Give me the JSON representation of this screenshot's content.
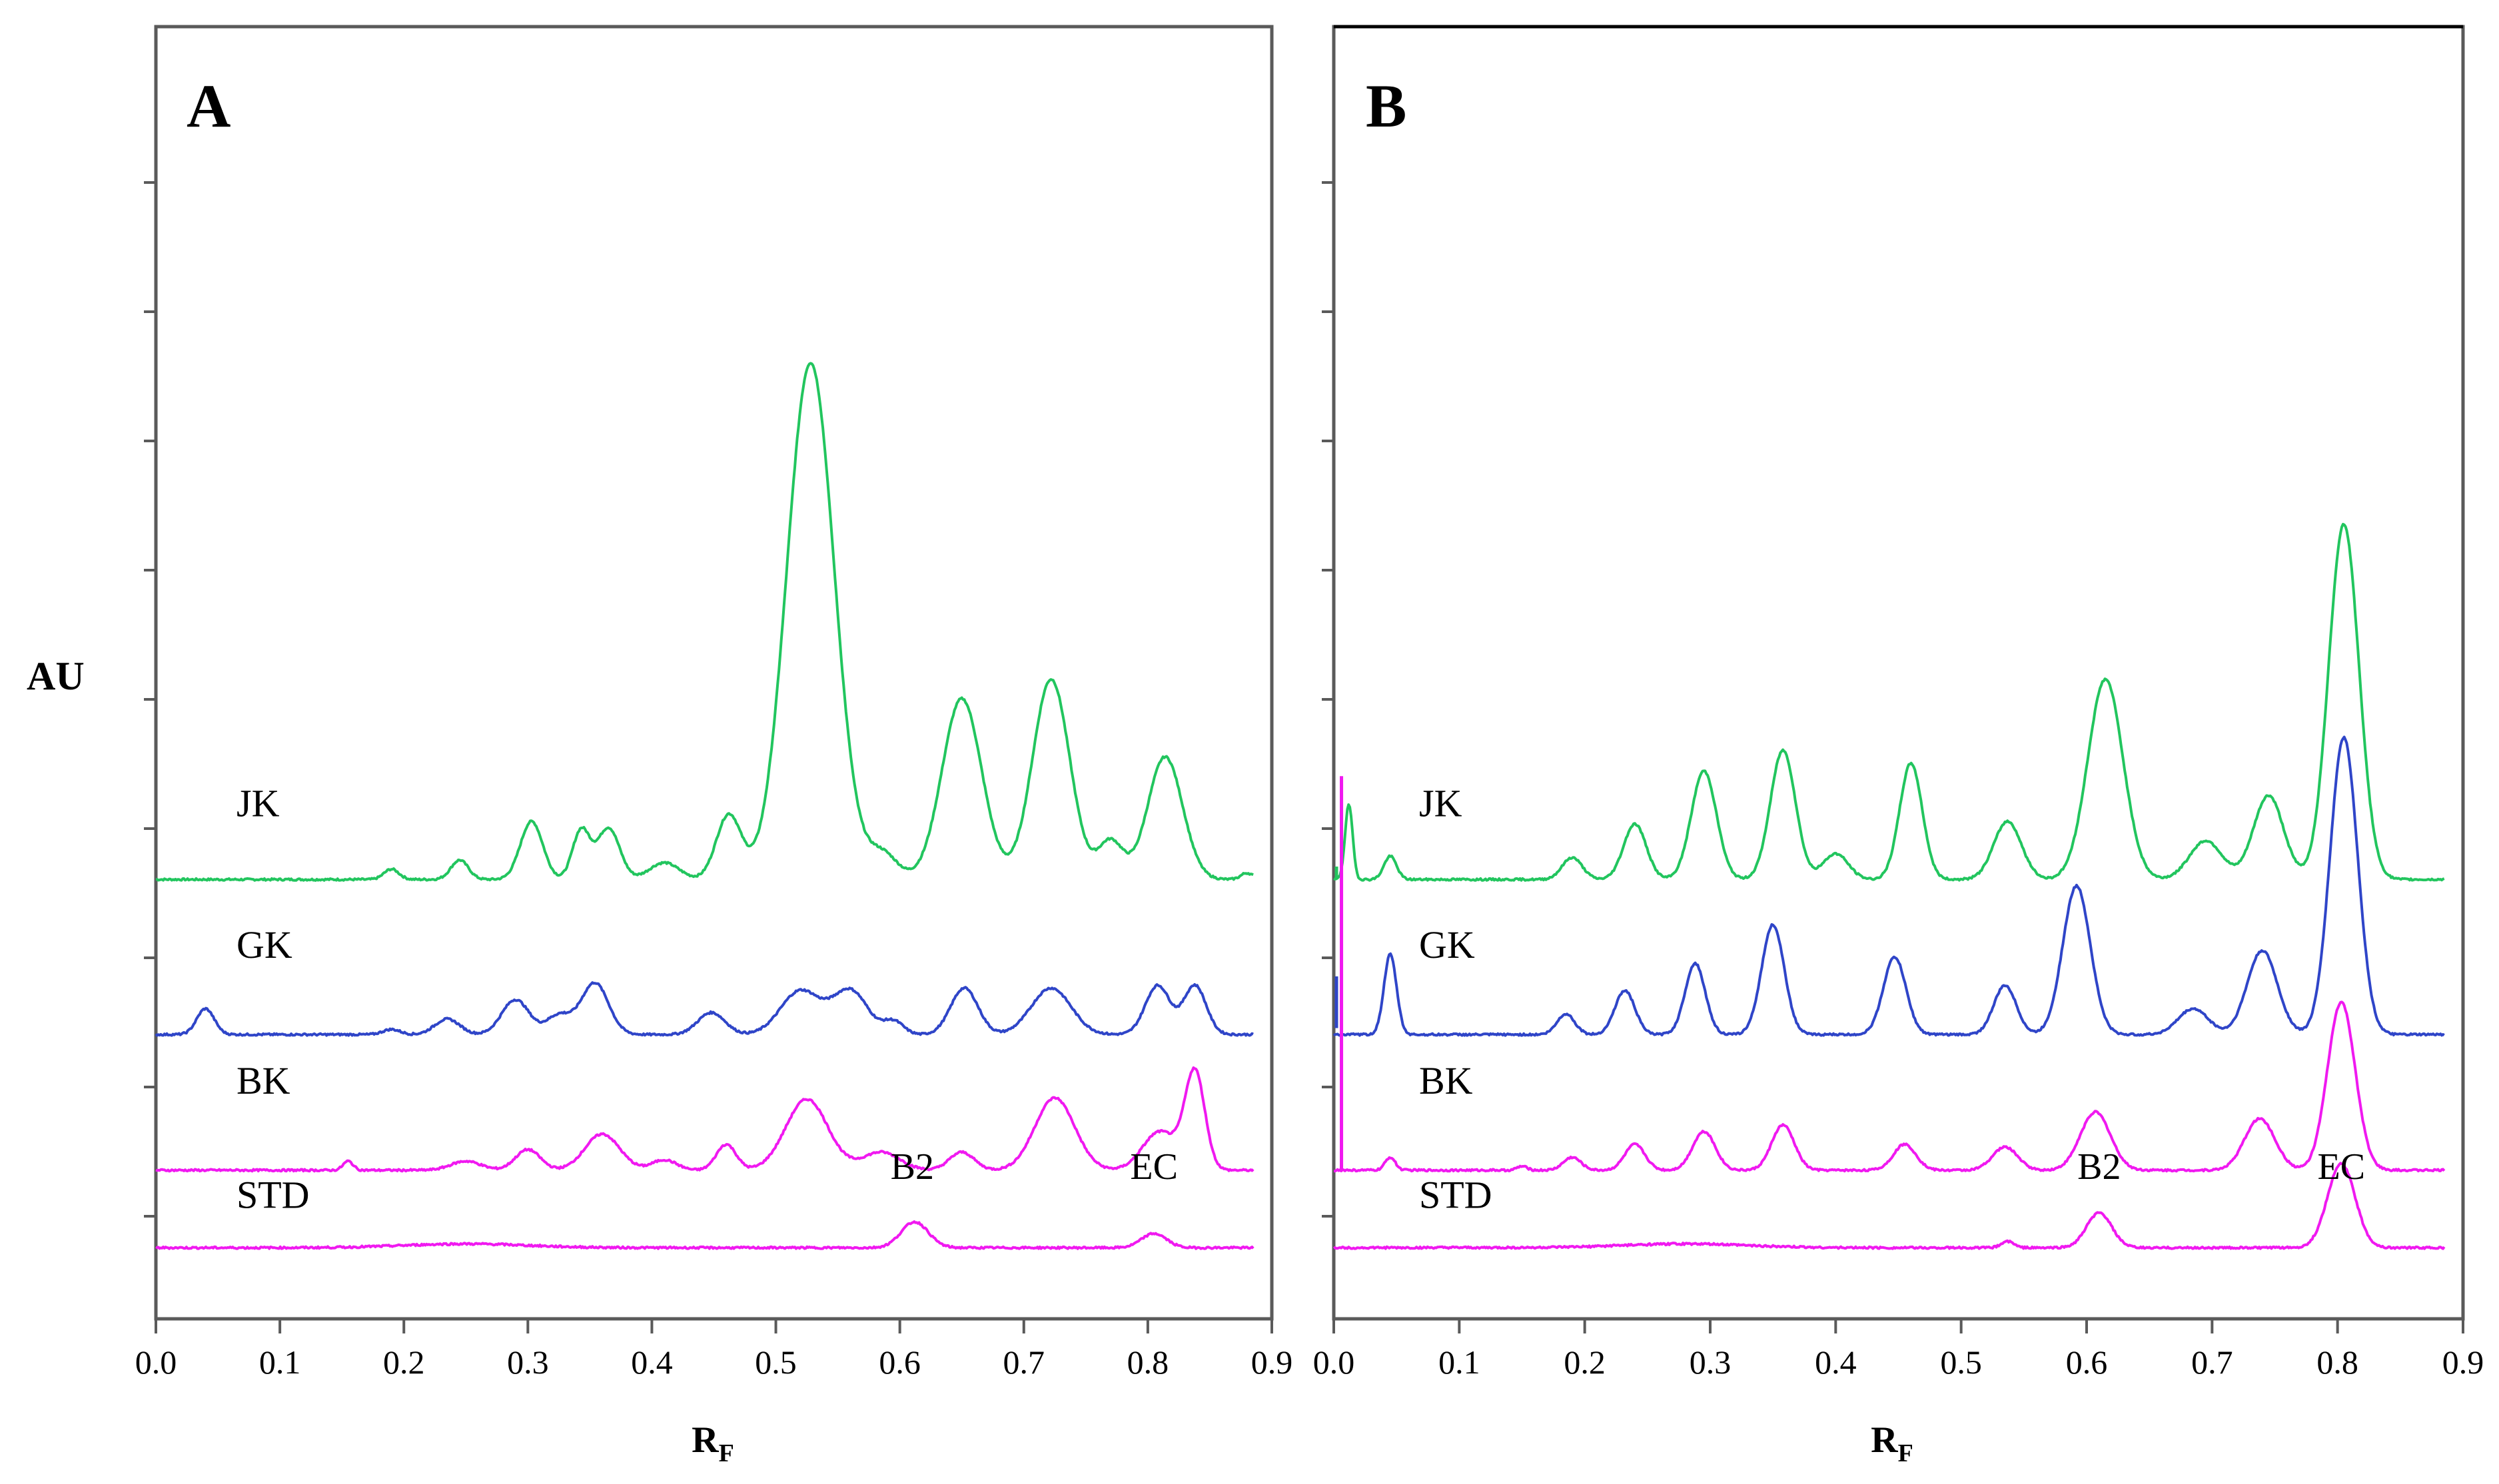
{
  "figure": {
    "y_axis_label": "AU",
    "x_axis_label_main": "R",
    "x_axis_label_sub": "F",
    "x_ticks": [
      "0.0",
      "0.1",
      "0.2",
      "0.3",
      "0.4",
      "0.5",
      "0.6",
      "0.7",
      "0.8",
      "0.9"
    ]
  },
  "colors": {
    "JK": "#22c55e",
    "GK": "#2f45c8",
    "BK": "#f019f0",
    "STD": "#f019f0",
    "axis": "#555555"
  },
  "chart_data": [
    {
      "type": "line",
      "panel": "A",
      "title": "A",
      "xlabel": "RF",
      "ylabel": "AU",
      "xlim": [
        0.0,
        0.9
      ],
      "ylim": [
        0,
        1
      ],
      "grid": false,
      "series": [
        {
          "name": "JK",
          "baseline": 0.34,
          "end": 0.885,
          "peaks": [
            {
              "x": 0.19,
              "h": 0.008,
              "w": 0.006
            },
            {
              "x": 0.245,
              "h": 0.015,
              "w": 0.007
            },
            {
              "x": 0.303,
              "h": 0.045,
              "w": 0.009
            },
            {
              "x": 0.343,
              "h": 0.038,
              "w": 0.007
            },
            {
              "x": 0.365,
              "h": 0.04,
              "w": 0.009
            },
            {
              "x": 0.41,
              "h": 0.013,
              "w": 0.012
            },
            {
              "x": 0.462,
              "h": 0.05,
              "w": 0.01
            },
            {
              "x": 0.528,
              "h": 0.4,
              "w": 0.019
            },
            {
              "x": 0.586,
              "h": 0.02,
              "w": 0.012
            },
            {
              "x": 0.65,
              "h": 0.14,
              "w": 0.016
            },
            {
              "x": 0.722,
              "h": 0.155,
              "w": 0.015
            },
            {
              "x": 0.77,
              "h": 0.03,
              "w": 0.01
            },
            {
              "x": 0.814,
              "h": 0.095,
              "w": 0.014
            },
            {
              "x": 0.88,
              "h": 0.005,
              "w": 0.005
            }
          ]
        },
        {
          "name": "GK",
          "baseline": 0.22,
          "end": 0.885,
          "peaks": [
            {
              "x": 0.04,
              "h": 0.02,
              "w": 0.007
            },
            {
              "x": 0.19,
              "h": 0.004,
              "w": 0.007
            },
            {
              "x": 0.235,
              "h": 0.012,
              "w": 0.01
            },
            {
              "x": 0.29,
              "h": 0.027,
              "w": 0.011
            },
            {
              "x": 0.325,
              "h": 0.015,
              "w": 0.01
            },
            {
              "x": 0.354,
              "h": 0.04,
              "w": 0.011
            },
            {
              "x": 0.448,
              "h": 0.017,
              "w": 0.011
            },
            {
              "x": 0.52,
              "h": 0.034,
              "w": 0.016
            },
            {
              "x": 0.56,
              "h": 0.034,
              "w": 0.014
            },
            {
              "x": 0.595,
              "h": 0.01,
              "w": 0.008
            },
            {
              "x": 0.652,
              "h": 0.036,
              "w": 0.011
            },
            {
              "x": 0.722,
              "h": 0.036,
              "w": 0.016
            },
            {
              "x": 0.808,
              "h": 0.038,
              "w": 0.01
            },
            {
              "x": 0.838,
              "h": 0.038,
              "w": 0.009
            }
          ]
        },
        {
          "name": "BK",
          "baseline": 0.115,
          "end": 0.885,
          "peaks": [
            {
              "x": 0.155,
              "h": 0.007,
              "w": 0.004
            },
            {
              "x": 0.25,
              "h": 0.007,
              "w": 0.012
            },
            {
              "x": 0.3,
              "h": 0.016,
              "w": 0.01
            },
            {
              "x": 0.36,
              "h": 0.028,
              "w": 0.014
            },
            {
              "x": 0.41,
              "h": 0.008,
              "w": 0.01
            },
            {
              "x": 0.46,
              "h": 0.02,
              "w": 0.008
            },
            {
              "x": 0.525,
              "h": 0.055,
              "w": 0.017
            },
            {
              "x": 0.585,
              "h": 0.014,
              "w": 0.015
            },
            {
              "x": 0.65,
              "h": 0.014,
              "w": 0.01
            },
            {
              "x": 0.725,
              "h": 0.056,
              "w": 0.016
            },
            {
              "x": 0.81,
              "h": 0.03,
              "w": 0.014
            },
            {
              "x": 0.838,
              "h": 0.075,
              "w": 0.008
            }
          ]
        },
        {
          "name": "STD",
          "baseline": 0.055,
          "end": 0.885,
          "peaks": [
            {
              "x": 0.25,
              "h": 0.003,
              "w": 0.05
            },
            {
              "x": 0.612,
              "h": 0.02,
              "w": 0.011
            },
            {
              "x": 0.805,
              "h": 0.011,
              "w": 0.01
            }
          ]
        }
      ],
      "annotations": [
        {
          "text": "B2",
          "x": 0.61
        },
        {
          "text": "EC",
          "x": 0.805
        }
      ]
    },
    {
      "type": "line",
      "panel": "B",
      "title": "B",
      "xlabel": "RF",
      "ylabel": "AU",
      "xlim": [
        0.0,
        0.9
      ],
      "ylim": [
        0,
        1
      ],
      "grid": false,
      "series": [
        {
          "name": "JK",
          "baseline": 0.34,
          "end": 0.885,
          "peaks": [
            {
              "x": 0.012,
              "h": 0.058,
              "w": 0.003
            },
            {
              "x": 0.045,
              "h": 0.018,
              "w": 0.005
            },
            {
              "x": 0.19,
              "h": 0.017,
              "w": 0.008
            },
            {
              "x": 0.24,
              "h": 0.043,
              "w": 0.009
            },
            {
              "x": 0.295,
              "h": 0.084,
              "w": 0.01
            },
            {
              "x": 0.358,
              "h": 0.1,
              "w": 0.01
            },
            {
              "x": 0.4,
              "h": 0.02,
              "w": 0.01
            },
            {
              "x": 0.46,
              "h": 0.09,
              "w": 0.009
            },
            {
              "x": 0.537,
              "h": 0.045,
              "w": 0.011
            },
            {
              "x": 0.615,
              "h": 0.155,
              "w": 0.014
            },
            {
              "x": 0.695,
              "h": 0.03,
              "w": 0.013
            },
            {
              "x": 0.745,
              "h": 0.065,
              "w": 0.012
            },
            {
              "x": 0.805,
              "h": 0.275,
              "w": 0.012
            }
          ]
        },
        {
          "name": "GK",
          "baseline": 0.22,
          "end": 0.885,
          "peaks": [
            {
              "x": 0.045,
              "h": 0.062,
              "w": 0.005
            },
            {
              "x": 0.185,
              "h": 0.016,
              "w": 0.007
            },
            {
              "x": 0.232,
              "h": 0.034,
              "w": 0.008
            },
            {
              "x": 0.288,
              "h": 0.055,
              "w": 0.008
            },
            {
              "x": 0.35,
              "h": 0.085,
              "w": 0.009
            },
            {
              "x": 0.447,
              "h": 0.06,
              "w": 0.009
            },
            {
              "x": 0.535,
              "h": 0.038,
              "w": 0.009
            },
            {
              "x": 0.592,
              "h": 0.115,
              "w": 0.011
            },
            {
              "x": 0.685,
              "h": 0.02,
              "w": 0.012
            },
            {
              "x": 0.74,
              "h": 0.065,
              "w": 0.012
            },
            {
              "x": 0.805,
              "h": 0.23,
              "w": 0.011
            }
          ]
        },
        {
          "name": "BK",
          "baseline": 0.115,
          "end": 0.885,
          "peaks": [
            {
              "x": 0.045,
              "h": 0.01,
              "w": 0.004
            },
            {
              "x": 0.15,
              "h": 0.003,
              "w": 0.004
            },
            {
              "x": 0.19,
              "h": 0.01,
              "w": 0.007
            },
            {
              "x": 0.24,
              "h": 0.02,
              "w": 0.008
            },
            {
              "x": 0.295,
              "h": 0.03,
              "w": 0.009
            },
            {
              "x": 0.358,
              "h": 0.035,
              "w": 0.009
            },
            {
              "x": 0.455,
              "h": 0.02,
              "w": 0.009
            },
            {
              "x": 0.535,
              "h": 0.018,
              "w": 0.01
            },
            {
              "x": 0.607,
              "h": 0.045,
              "w": 0.012
            },
            {
              "x": 0.738,
              "h": 0.04,
              "w": 0.012
            },
            {
              "x": 0.803,
              "h": 0.13,
              "w": 0.011
            }
          ]
        },
        {
          "name": "STD",
          "baseline": 0.055,
          "end": 0.885,
          "peaks": [
            {
              "x": 0.28,
              "h": 0.003,
              "w": 0.05
            },
            {
              "x": 0.537,
              "h": 0.005,
              "w": 0.005
            },
            {
              "x": 0.61,
              "h": 0.027,
              "w": 0.01
            },
            {
              "x": 0.803,
              "h": 0.065,
              "w": 0.011
            }
          ]
        }
      ],
      "annotations": [
        {
          "text": "B2",
          "x": 0.61
        },
        {
          "text": "EC",
          "x": 0.803
        }
      ]
    }
  ]
}
